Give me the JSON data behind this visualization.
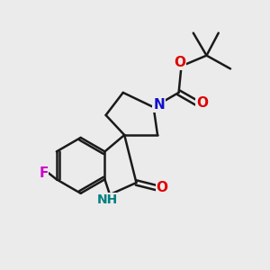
{
  "bg_color": "#ebebeb",
  "bond_color": "#1a1a1a",
  "bond_width": 1.8,
  "atom_colors": {
    "O": "#e00000",
    "N_pyrroli": "#1010cc",
    "NH": "#008080",
    "F": "#cc00cc",
    "C": "#1a1a1a"
  },
  "font_size": 10,
  "fig_size": [
    3.0,
    3.0
  ],
  "dpi": 100
}
